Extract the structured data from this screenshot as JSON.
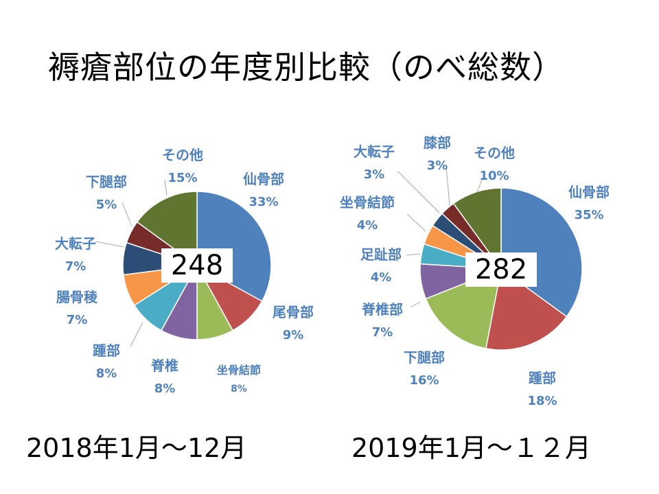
{
  "title": "褥瘡部位の年度別比較（のべ総数）",
  "chart_data": [
    {
      "type": "pie",
      "caption": "2018年1月～12月",
      "total": "248",
      "slices": [
        {
          "label": "仙骨部",
          "value": 33,
          "pct": "33%",
          "color": "#4f81bd"
        },
        {
          "label": "尾骨部",
          "value": 9,
          "pct": "9%",
          "color": "#c0504d"
        },
        {
          "label": "坐骨結節",
          "value": 8,
          "pct": "8%",
          "color": "#9bbb59"
        },
        {
          "label": "脊椎",
          "value": 8,
          "pct": "8%",
          "color": "#8064a2"
        },
        {
          "label": "踵部",
          "value": 8,
          "pct": "8%",
          "color": "#4bacc6"
        },
        {
          "label": "腸骨稜",
          "value": 7,
          "pct": "7%",
          "color": "#f79646"
        },
        {
          "label": "大転子",
          "value": 7,
          "pct": "7%",
          "color": "#2c4d75"
        },
        {
          "label": "下腿部",
          "value": 5,
          "pct": "5%",
          "color": "#772c2a"
        },
        {
          "label": "その他",
          "value": 15,
          "pct": "15%",
          "color": "#5f7530"
        }
      ]
    },
    {
      "type": "pie",
      "caption": "2019年1月～１２月",
      "total": "282",
      "slices": [
        {
          "label": "仙骨部",
          "value": 35,
          "pct": "35%",
          "color": "#4f81bd"
        },
        {
          "label": "踵部",
          "value": 18,
          "pct": "18%",
          "color": "#c0504d"
        },
        {
          "label": "下腿部",
          "value": 16,
          "pct": "16%",
          "color": "#9bbb59"
        },
        {
          "label": "脊椎部",
          "value": 7,
          "pct": "7%",
          "color": "#8064a2"
        },
        {
          "label": "足趾部",
          "value": 4,
          "pct": "4%",
          "color": "#4bacc6"
        },
        {
          "label": "坐骨結節",
          "value": 4,
          "pct": "4%",
          "color": "#f79646"
        },
        {
          "label": "大転子",
          "value": 3,
          "pct": "3%",
          "color": "#2c4d75"
        },
        {
          "label": "膝部",
          "value": 3,
          "pct": "3%",
          "color": "#772c2a"
        },
        {
          "label": "その他",
          "value": 10,
          "pct": "10%",
          "color": "#5f7530"
        }
      ]
    }
  ]
}
